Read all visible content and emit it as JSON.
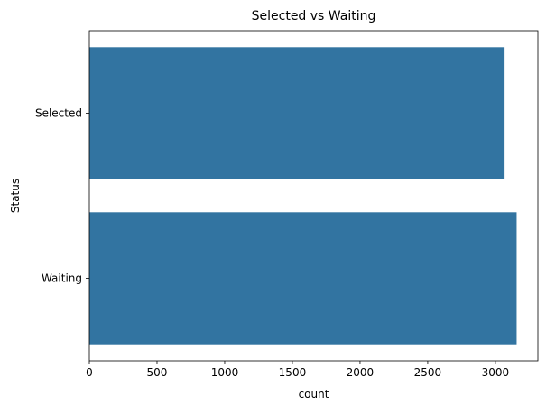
{
  "chart_data": {
    "type": "bar",
    "orientation": "horizontal",
    "title": "Selected vs Waiting",
    "xlabel": "count",
    "ylabel": "Status",
    "categories": [
      "Selected",
      "Waiting"
    ],
    "values": [
      3068,
      3157
    ],
    "xlim": [
      0,
      3314
    ],
    "xticks": [
      0,
      500,
      1000,
      1500,
      2000,
      2500,
      3000
    ],
    "xtick_labels": [
      "0",
      "500",
      "1000",
      "1500",
      "2000",
      "2500",
      "3000"
    ],
    "bar_color": "#3274a1",
    "grid": false,
    "legend": "none"
  }
}
